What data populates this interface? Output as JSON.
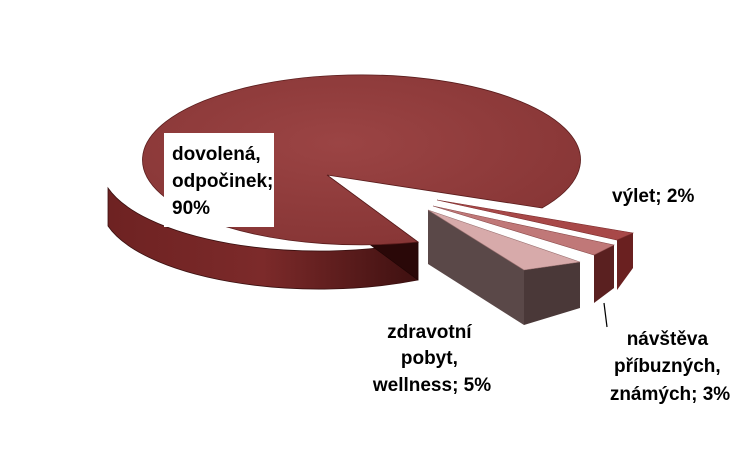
{
  "chart_data": {
    "type": "pie",
    "style": "3d-exploded",
    "title": "",
    "slices": [
      {
        "label": "dovolená, odpočinek",
        "value": 90,
        "text_lines": [
          "dovolená,",
          "odpočinek;",
          "90%"
        ],
        "color": "#8e3a3a"
      },
      {
        "label": "výlet",
        "value": 2,
        "text_lines": [
          "výlet; 2%"
        ],
        "color": "#a84848"
      },
      {
        "label": "návštěva příbuzných, známých",
        "value": 3,
        "text_lines": [
          "návštěva",
          "příbuzných,",
          "známých; 3%"
        ],
        "color": "#c07878"
      },
      {
        "label": "zdravotní pobyt, wellness",
        "value": 5,
        "text_lines": [
          "zdravotní",
          "pobyt,",
          "wellness; 5%"
        ],
        "color": "#d7aaaa"
      }
    ],
    "legend": "none",
    "colors": {
      "main_top": "#8e3a3a",
      "main_side": "#5a1c1c",
      "wellness_top": "#d7aaaa",
      "wellness_side": "#5a4848"
    }
  }
}
